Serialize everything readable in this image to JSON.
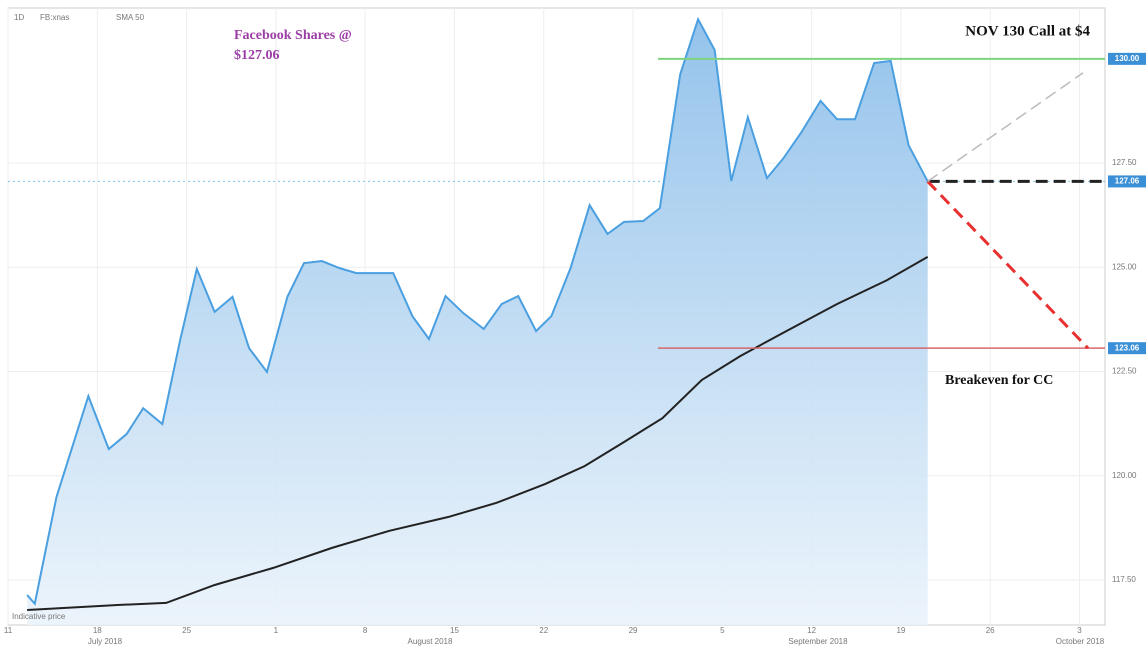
{
  "chart_data": {
    "type": "line",
    "header": [
      "1D",
      "FB:xnas",
      "SMA 50"
    ],
    "title_lines": [
      "Facebook Shares @",
      "$127.06"
    ],
    "annotations": {
      "call": "NOV 130 Call at $4",
      "breakeven": "Breakeven for CC",
      "indicative": "Indicative price"
    },
    "months": [
      "July 2018",
      "August 2018",
      "September 2018",
      "October 2018"
    ],
    "xlim": [
      11,
      97
    ],
    "xticks": [
      {
        "value": 11,
        "label": "11"
      },
      {
        "value": 18,
        "label": "18"
      },
      {
        "value": 25,
        "label": "25"
      },
      {
        "value": 32,
        "label": "1"
      },
      {
        "value": 39,
        "label": "8"
      },
      {
        "value": 46,
        "label": "15"
      },
      {
        "value": 53,
        "label": "22"
      },
      {
        "value": 60,
        "label": "29"
      },
      {
        "value": 67,
        "label": "5"
      },
      {
        "value": 74,
        "label": "12"
      },
      {
        "value": 81,
        "label": "19"
      },
      {
        "value": 88,
        "label": "26"
      },
      {
        "value": 95,
        "label": "3"
      }
    ],
    "ylim": [
      116.42,
      131.22
    ],
    "yticks": [
      {
        "value": 117.5,
        "label": "117.50"
      },
      {
        "value": 120,
        "label": "120.00"
      },
      {
        "value": 122.5,
        "label": "122.50"
      },
      {
        "value": 125,
        "label": "125.00"
      },
      {
        "value": 127.5,
        "label": "127.50"
      }
    ],
    "levels": [
      {
        "value": 130,
        "label": "130.00",
        "color": "#7ed47e"
      },
      {
        "value": 127.06,
        "label": "127.06",
        "color": "#222222"
      },
      {
        "value": 123.06,
        "label": "123.06",
        "color": "#d46a6a"
      }
    ],
    "grid": true,
    "series": [
      {
        "name": "FB",
        "color": "#4a9fe0",
        "x": [
          12.5,
          13.1,
          14.8,
          17.3,
          18.9,
          20.3,
          21.6,
          23.1,
          24.5,
          25.8,
          27.2,
          28.6,
          29.9,
          31.3,
          32.9,
          34.2,
          35.6,
          37.0,
          38.3,
          39.8,
          41.2,
          42.7,
          44.0,
          45.3,
          46.7,
          48.3,
          49.7,
          51.0,
          52.4,
          53.6,
          55.1,
          56.6,
          58.0,
          59.3,
          60.8,
          62.1,
          63.7,
          65.1,
          66.4,
          67.7,
          69.0,
          70.5,
          71.8,
          73.2,
          74.7,
          76.0,
          77.4,
          78.9,
          80.2,
          81.6,
          83.1
        ],
        "values": [
          117.14,
          116.93,
          119.49,
          121.91,
          120.64,
          121.0,
          121.62,
          121.24,
          123.26,
          124.96,
          123.93,
          124.29,
          123.06,
          122.49,
          124.29,
          125.1,
          125.15,
          124.98,
          124.86,
          124.86,
          124.86,
          123.83,
          123.28,
          124.31,
          123.9,
          123.52,
          124.12,
          124.31,
          123.47,
          123.83,
          124.98,
          126.49,
          125.8,
          126.09,
          126.11,
          126.42,
          129.63,
          130.95,
          130.21,
          127.07,
          128.6,
          127.14,
          127.62,
          128.24,
          128.99,
          128.55,
          128.55,
          129.9,
          129.95,
          127.93,
          127.06
        ]
      },
      {
        "name": "SMA 50",
        "color": "#222222",
        "x": [
          12.5,
          19.6,
          23.4,
          27.2,
          31.8,
          36.4,
          40.9,
          45.5,
          49.3,
          53.1,
          56.2,
          59.3,
          62.3,
          65.4,
          68.4,
          72.2,
          76.0,
          79.9,
          83.1
        ],
        "values": [
          116.78,
          116.9,
          116.95,
          117.38,
          117.79,
          118.27,
          118.68,
          119.01,
          119.35,
          119.8,
          120.23,
          120.81,
          121.38,
          122.3,
          122.87,
          123.5,
          124.12,
          124.69,
          125.25
        ]
      }
    ]
  }
}
